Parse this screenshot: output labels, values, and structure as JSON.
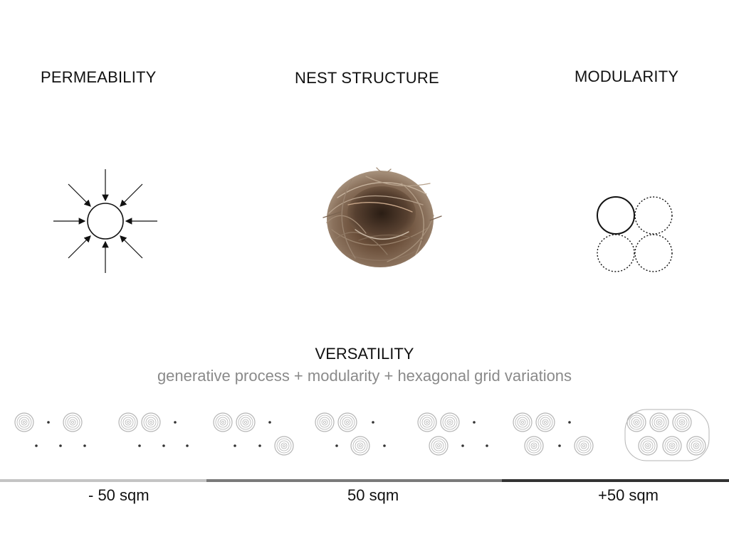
{
  "headings": {
    "permeability": "PERMEABILITY",
    "nest": "NEST STRUCTURE",
    "modularity": "MODULARITY"
  },
  "versatility": {
    "title": "VERSATILITY",
    "subtitle": "generative process + modularity + hexagonal grid variations"
  },
  "scale": {
    "labels": [
      "- 50 sqm",
      "50 sqm",
      "+50 sqm"
    ],
    "bar_colors": [
      "#c4c4c4",
      "#7a7a7a",
      "#333333"
    ]
  },
  "colors": {
    "text": "#111111",
    "subtitle": "#8a8a8a",
    "module_outline": "#b5b5b5",
    "nest_brown": "#6b4f3a"
  },
  "icons": {
    "permeability": "radial-arrows-icon",
    "nest": "bird-nest-icon",
    "modularity": "circle-modules-icon"
  }
}
